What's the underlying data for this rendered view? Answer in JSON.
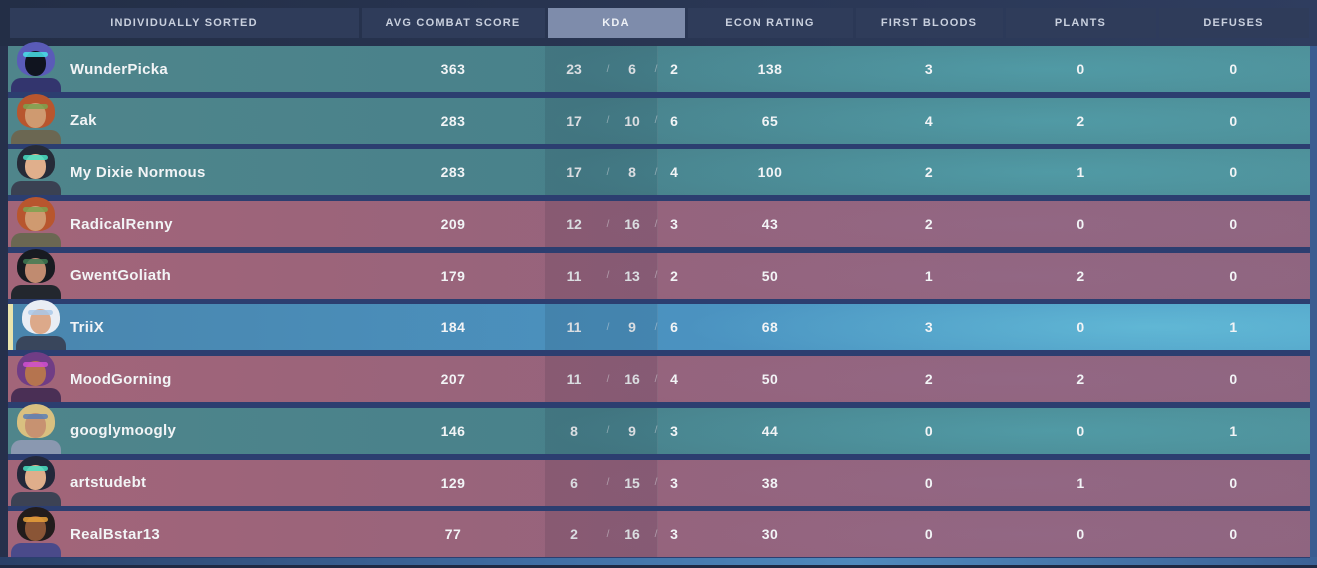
{
  "header": {
    "columns": [
      {
        "label": "INDIVIDUALLY SORTED",
        "selected": false
      },
      {
        "label": "AVG COMBAT SCORE",
        "selected": false
      },
      {
        "label": "KDA",
        "selected": true
      },
      {
        "label": "ECON RATING",
        "selected": false
      },
      {
        "label": "FIRST BLOODS",
        "selected": false
      },
      {
        "label": "PLANTS",
        "selected": false
      },
      {
        "label": "DEFUSES",
        "selected": false
      }
    ]
  },
  "kda_separator": "/",
  "colors": {
    "ally_row": "#4d868f",
    "enemy_row": "#9b6379",
    "local_player_row": "#4e95c1",
    "local_highlight_bar": "#e9e3ac",
    "header_cell": "#2f3c5a",
    "header_selected": "#7e8cab",
    "row_gap": "#2c3e70",
    "text": "#f2f4f6"
  },
  "players": [
    {
      "name": "WunderPicka",
      "team": "ally",
      "is_local_player": false,
      "agent_icon": "omen-avatar",
      "acs": "363",
      "kills": "23",
      "deaths": "6",
      "assists": "2",
      "econ": "138",
      "first_bloods": "3",
      "plants": "0",
      "defuses": "0",
      "avatar": {
        "hair": "#5a5bb8",
        "skin": "#10141f",
        "body": "#33356e",
        "accent": "#49e0e8"
      }
    },
    {
      "name": "Zak",
      "team": "ally",
      "is_local_player": false,
      "agent_icon": "skye-avatar",
      "acs": "283",
      "kills": "17",
      "deaths": "10",
      "assists": "6",
      "econ": "65",
      "first_bloods": "4",
      "plants": "2",
      "defuses": "0",
      "avatar": {
        "hair": "#b8562e",
        "skin": "#cf9a70",
        "body": "#6b6752",
        "accent": "#7ca24f"
      }
    },
    {
      "name": "My Dixie Normous",
      "team": "ally",
      "is_local_player": false,
      "agent_icon": "sage-avatar",
      "acs": "283",
      "kills": "17",
      "deaths": "8",
      "assists": "4",
      "econ": "100",
      "first_bloods": "2",
      "plants": "1",
      "defuses": "0",
      "avatar": {
        "hair": "#262b38",
        "skin": "#e0af8c",
        "body": "#3a4152",
        "accent": "#49e0c4"
      }
    },
    {
      "name": "RadicalRenny",
      "team": "enemy",
      "is_local_player": false,
      "agent_icon": "skye-avatar",
      "acs": "209",
      "kills": "12",
      "deaths": "16",
      "assists": "3",
      "econ": "43",
      "first_bloods": "2",
      "plants": "0",
      "defuses": "0",
      "avatar": {
        "hair": "#b8562e",
        "skin": "#cf9a70",
        "body": "#6b6752",
        "accent": "#7ca24f"
      }
    },
    {
      "name": "GwentGoliath",
      "team": "enemy",
      "is_local_player": false,
      "agent_icon": "viper-avatar",
      "acs": "179",
      "kills": "11",
      "deaths": "13",
      "assists": "2",
      "econ": "50",
      "first_bloods": "1",
      "plants": "2",
      "defuses": "0",
      "avatar": {
        "hair": "#181b21",
        "skin": "#c08b70",
        "body": "#23272e",
        "accent": "#3f7a52"
      }
    },
    {
      "name": "TriiX",
      "team": "ally",
      "is_local_player": true,
      "agent_icon": "jett-avatar",
      "acs": "184",
      "kills": "11",
      "deaths": "9",
      "assists": "6",
      "econ": "68",
      "first_bloods": "3",
      "plants": "0",
      "defuses": "1",
      "avatar": {
        "hair": "#e9edf4",
        "skin": "#dca98a",
        "body": "#39465c",
        "accent": "#a9c8e8"
      }
    },
    {
      "name": "MoodGorning",
      "team": "enemy",
      "is_local_player": false,
      "agent_icon": "reyna-avatar",
      "acs": "207",
      "kills": "11",
      "deaths": "16",
      "assists": "4",
      "econ": "50",
      "first_bloods": "2",
      "plants": "2",
      "defuses": "0",
      "avatar": {
        "hair": "#703d85",
        "skin": "#b5744f",
        "body": "#4a2f55",
        "accent": "#d14fd1"
      }
    },
    {
      "name": "googlymoogly",
      "team": "ally",
      "is_local_player": false,
      "agent_icon": "sova-avatar",
      "acs": "146",
      "kills": "8",
      "deaths": "9",
      "assists": "3",
      "econ": "44",
      "first_bloods": "0",
      "plants": "0",
      "defuses": "1",
      "avatar": {
        "hair": "#d9c080",
        "skin": "#c79271",
        "body": "#8a98b0",
        "accent": "#5a7fb5"
      }
    },
    {
      "name": "artstudebt",
      "team": "enemy",
      "is_local_player": false,
      "agent_icon": "sage-avatar",
      "acs": "129",
      "kills": "6",
      "deaths": "15",
      "assists": "3",
      "econ": "38",
      "first_bloods": "0",
      "plants": "1",
      "defuses": "0",
      "avatar": {
        "hair": "#23283a",
        "skin": "#dfae8b",
        "body": "#3c4254",
        "accent": "#49e0c4"
      }
    },
    {
      "name": "RealBstar13",
      "team": "enemy",
      "is_local_player": false,
      "agent_icon": "phoenix-avatar",
      "acs": "77",
      "kills": "2",
      "deaths": "16",
      "assists": "3",
      "econ": "30",
      "first_bloods": "0",
      "plants": "0",
      "defuses": "0",
      "avatar": {
        "hair": "#221c1c",
        "skin": "#8a5536",
        "body": "#4a4a8a",
        "accent": "#e8a13a"
      }
    }
  ]
}
